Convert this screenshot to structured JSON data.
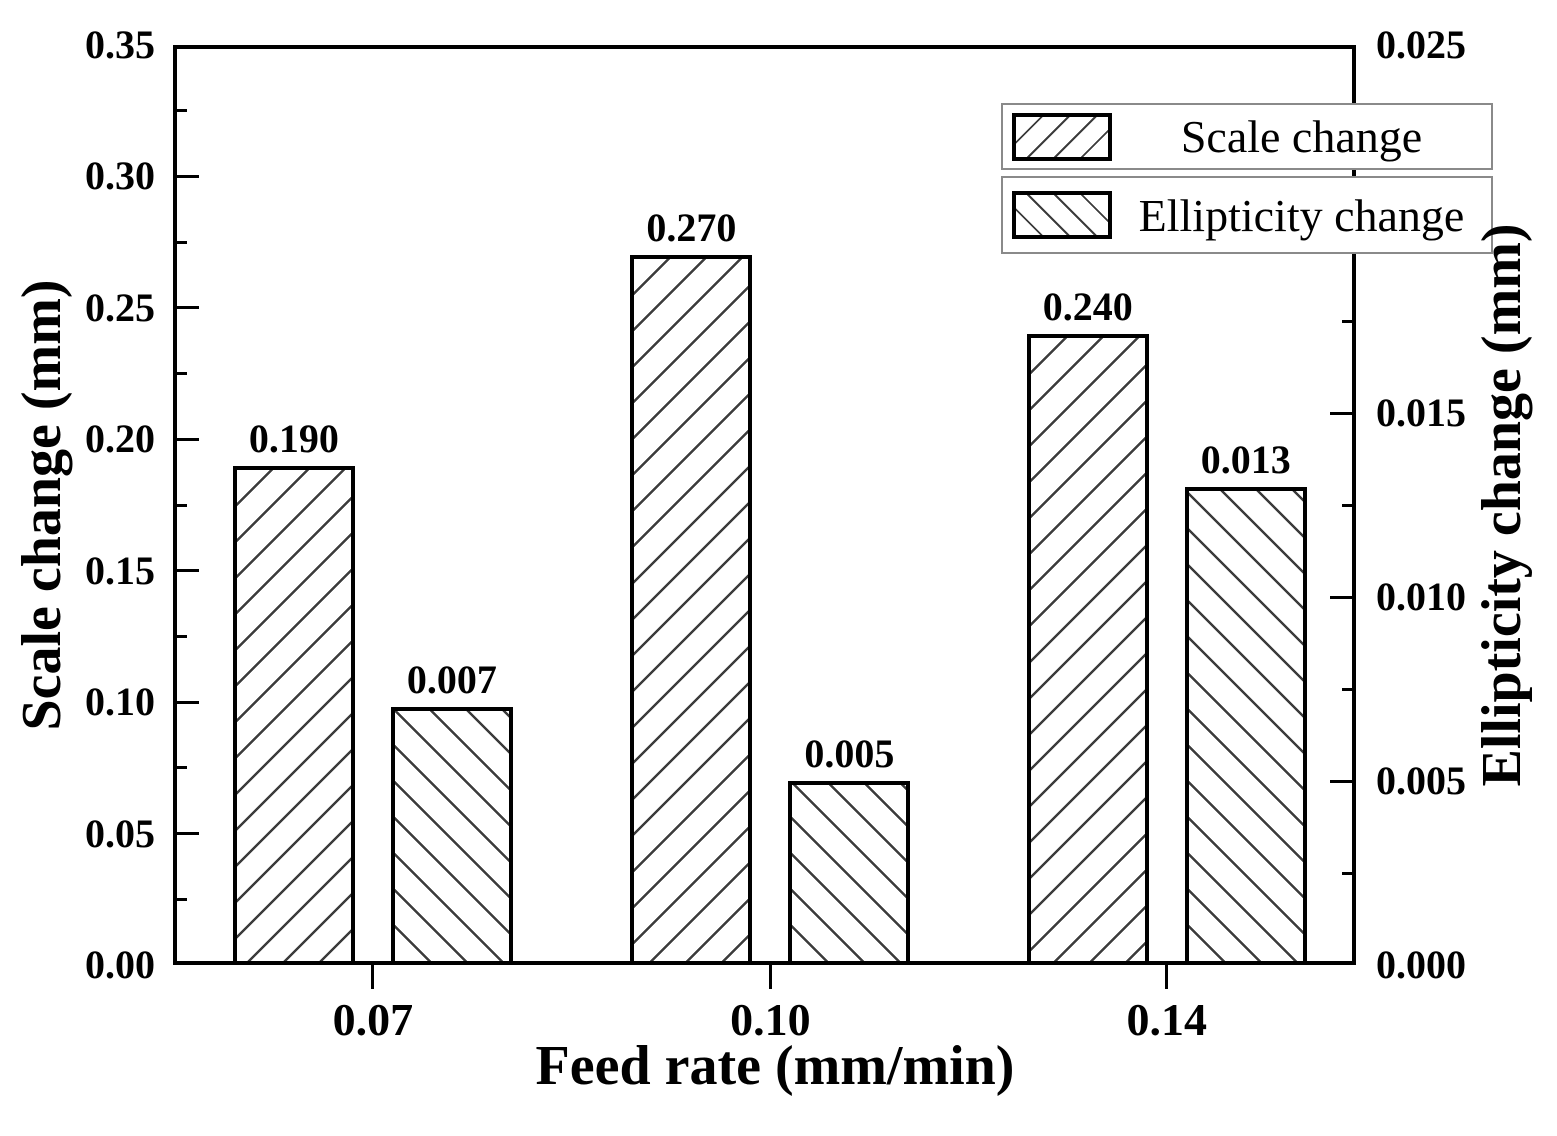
{
  "figure": {
    "background": "#ffffff",
    "line_color": "#000000",
    "hatch_color": "#3c3c3c",
    "legend_border_color": "#8a8a8a"
  },
  "chart_data": {
    "type": "bar",
    "categories": [
      "0.07",
      "0.10",
      "0.14"
    ],
    "series": [
      {
        "name": "Scale change",
        "axis": "left",
        "hatch": "forward-diagonal",
        "values": [
          0.19,
          0.27,
          0.24
        ],
        "labels": [
          "0.190",
          "0.270",
          "0.240"
        ]
      },
      {
        "name": "Ellipticity change",
        "axis": "right",
        "hatch": "backward-diagonal",
        "values": [
          0.007,
          0.005,
          0.013
        ],
        "labels": [
          "0.007",
          "0.005",
          "0.013"
        ]
      }
    ],
    "title": "",
    "xlabel": "Feed rate (mm/min)",
    "ylabel_left": "Scale change (mm)",
    "ylabel_right": "Ellipticity change (mm)",
    "left_axis": {
      "min": 0,
      "max": 0.35,
      "major_step": 0.05,
      "minor_step": 0.025,
      "tick_labels": [
        "0.00",
        "0.05",
        "0.10",
        "0.15",
        "0.20",
        "0.25",
        "0.30",
        "0.35"
      ]
    },
    "right_axis": {
      "min": 0,
      "max": 0.025,
      "major_step": 0.005,
      "minor_step": 0.0025,
      "tick_labels": [
        "0.000",
        "0.005",
        "0.010",
        "0.015",
        "0.020",
        "0.025"
      ]
    },
    "grid": false,
    "legend_position": "top-right-inside",
    "legend_entries": [
      "Scale change",
      "Ellipticity change"
    ]
  }
}
